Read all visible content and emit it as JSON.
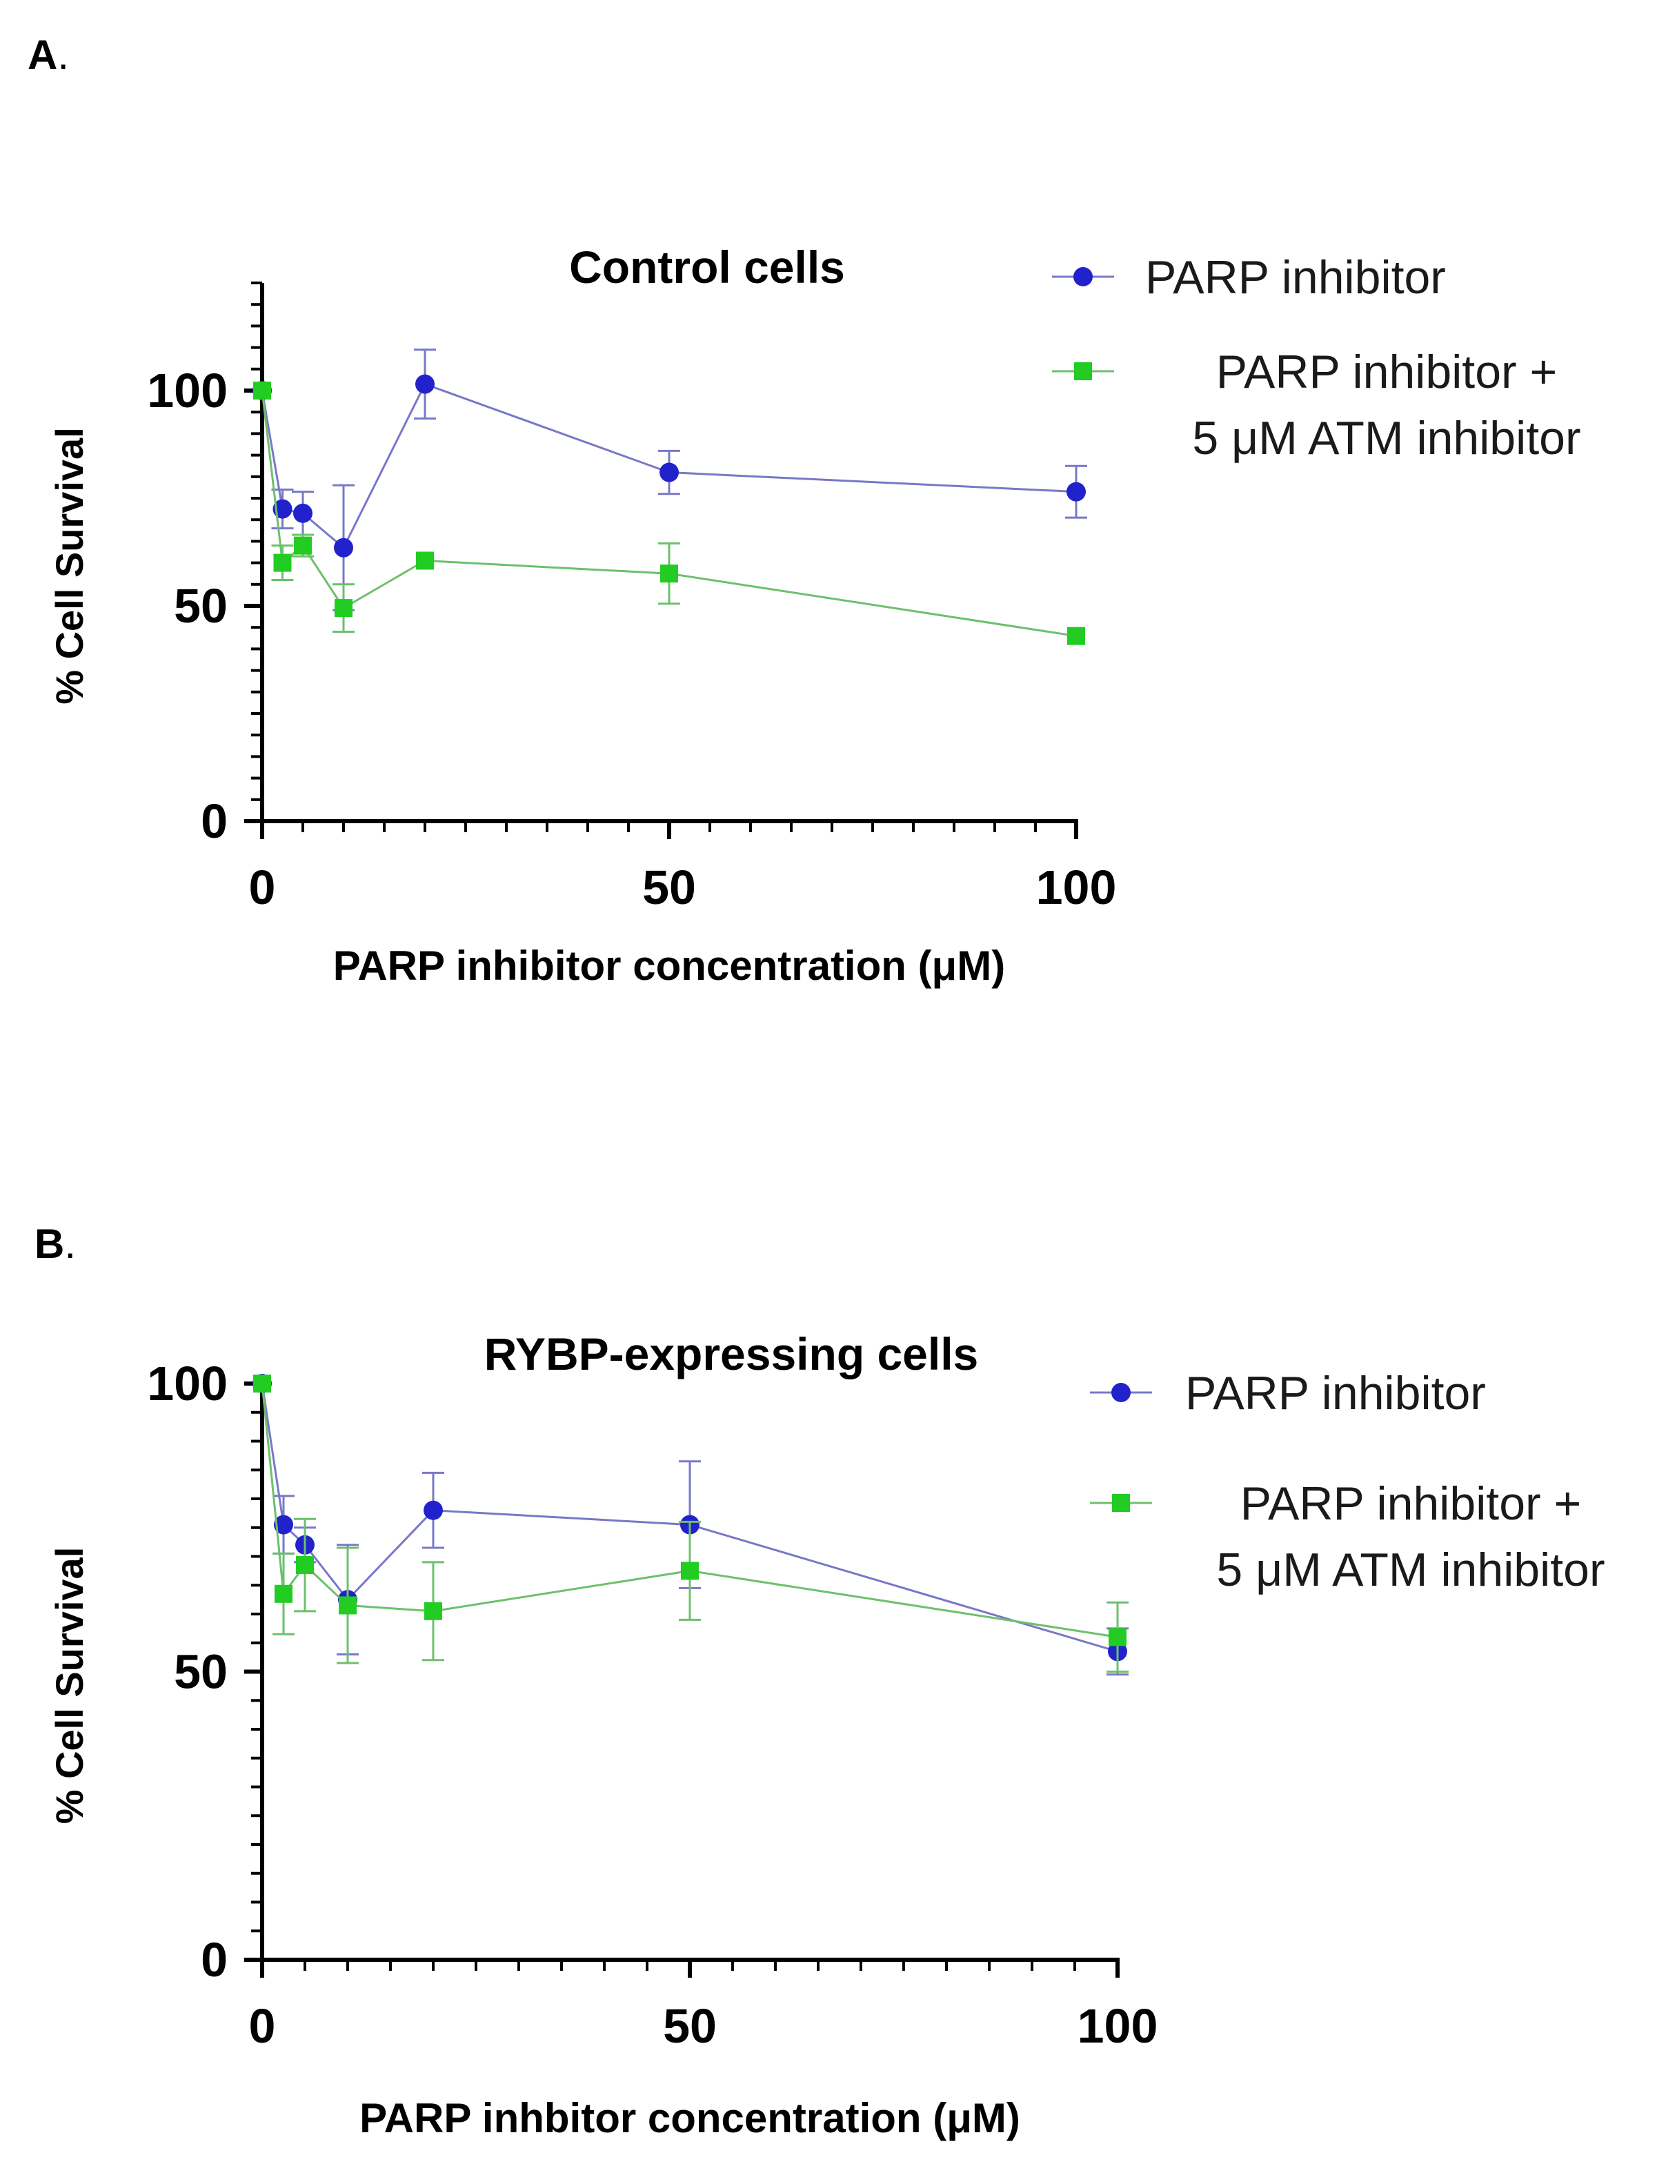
{
  "colors": {
    "series_blue": "#2222cc",
    "series_blue_line": "#7878c8",
    "series_green": "#22cc22",
    "series_green_line": "#6cc06c",
    "axis": "#000000"
  },
  "panels": [
    {
      "letter": "A",
      "dot": "."
    },
    {
      "letter": "B",
      "dot": "."
    }
  ],
  "chart_data": [
    {
      "type": "line",
      "title": "Control cells",
      "xlabel": "PARP inhibitor concentration (μM)",
      "ylabel": "% Cell Survival",
      "xlim": [
        0,
        100
      ],
      "ylim": [
        0,
        125
      ],
      "xticks": [
        0,
        50,
        100
      ],
      "yticks": [
        0,
        50,
        100
      ],
      "x_minor_step": 5,
      "y_minor_step": 5,
      "legend_position": "right",
      "series": [
        {
          "name": "PARP inhibitor",
          "legend_lines": [
            "PARP inhibitor"
          ],
          "marker": "circle",
          "x": [
            0,
            2.5,
            5,
            10,
            20,
            50,
            100
          ],
          "y": [
            100,
            72.5,
            71.5,
            63.5,
            101.5,
            81,
            76.5
          ],
          "err": [
            0,
            4.5,
            5,
            14.5,
            8,
            5,
            6
          ]
        },
        {
          "name": "PARP inhibitor + 5 μM ATM inhibitor",
          "legend_lines": [
            "PARP inhibitor +",
            "5 μM ATM inhibitor"
          ],
          "marker": "square",
          "x": [
            0,
            2.5,
            5,
            10,
            20,
            50,
            100
          ],
          "y": [
            100,
            60,
            64,
            49.5,
            60.5,
            57.5,
            43
          ],
          "err": [
            0,
            4,
            2.5,
            5.5,
            0,
            7,
            0
          ]
        }
      ]
    },
    {
      "type": "line",
      "title": "RYBP-expressing cells",
      "xlabel": "PARP inhbitor concentration (μM)",
      "ylabel": "% Cell Survival",
      "xlim": [
        0,
        100
      ],
      "ylim": [
        0,
        100
      ],
      "xticks": [
        0,
        50,
        100
      ],
      "yticks": [
        0,
        50,
        100
      ],
      "x_minor_step": 5,
      "y_minor_step": 5,
      "legend_position": "right",
      "series": [
        {
          "name": "PARP inhibitor",
          "legend_lines": [
            "PARP inhibitor"
          ],
          "marker": "circle",
          "x": [
            0,
            2.5,
            5,
            10,
            20,
            50,
            100
          ],
          "y": [
            100,
            75.5,
            72,
            62.5,
            78,
            75.5,
            53.5
          ],
          "err": [
            0,
            5,
            3,
            9.5,
            6.5,
            11,
            4
          ]
        },
        {
          "name": "PARP inhibitor + 5 μM ATM inhibitor",
          "legend_lines": [
            "PARP inhibitor +",
            "5 μM ATM inhibitor"
          ],
          "marker": "square",
          "x": [
            0,
            2.5,
            5,
            10,
            20,
            50,
            100
          ],
          "y": [
            100,
            63.5,
            68.5,
            61.5,
            60.5,
            67.5,
            56
          ],
          "err": [
            0,
            7,
            8,
            10,
            8.5,
            8.5,
            6
          ]
        }
      ]
    }
  ]
}
